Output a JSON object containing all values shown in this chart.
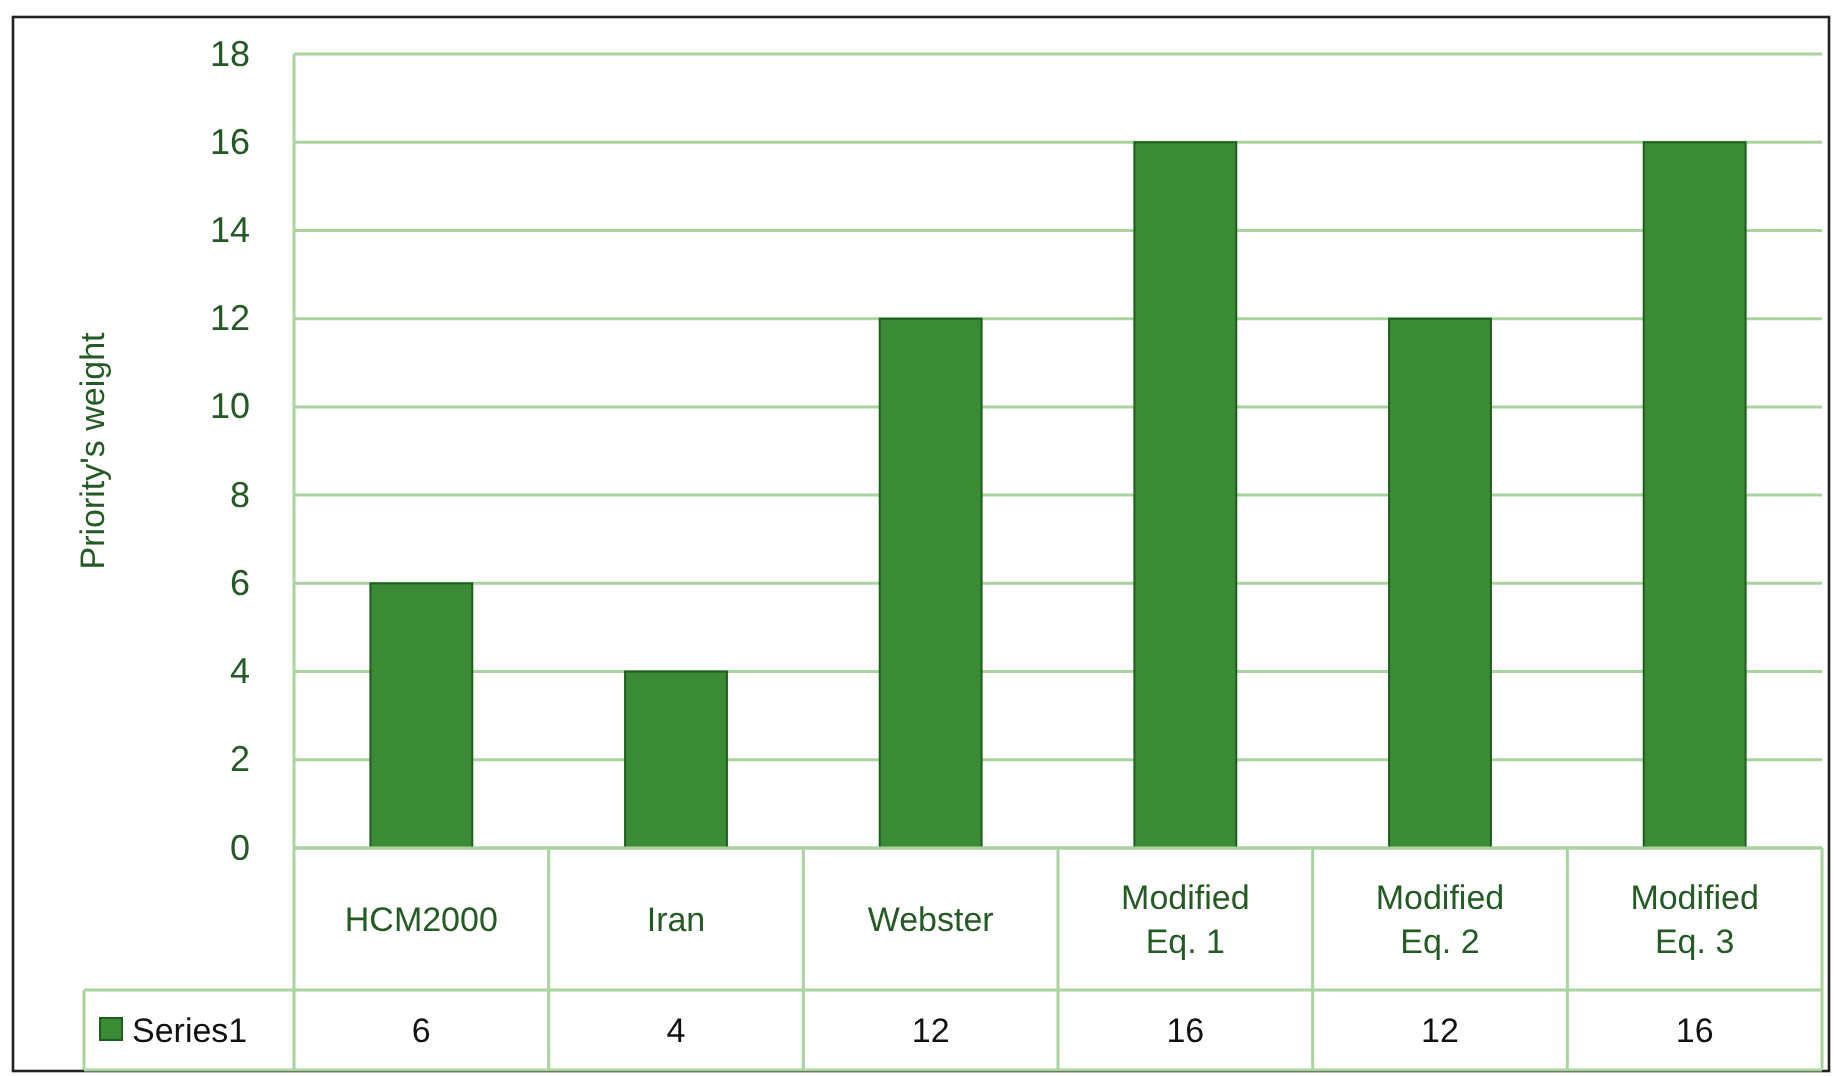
{
  "chart_data": {
    "type": "bar",
    "categories": [
      "HCM2000",
      "Iran",
      "Webster",
      "Modified Eq. 1",
      "Modified Eq. 2",
      "Modified Eq. 3"
    ],
    "series": [
      {
        "name": "Series1",
        "color": "#3b8a35",
        "values": [
          6,
          4,
          12,
          16,
          12,
          16
        ]
      }
    ],
    "ylabel": "Priority's weight",
    "ylim": [
      0,
      18
    ],
    "yticks": [
      0,
      2,
      4,
      6,
      8,
      10,
      12,
      14,
      16,
      18
    ],
    "grid": "y",
    "legend": "bottom left",
    "data_labels": true
  }
}
